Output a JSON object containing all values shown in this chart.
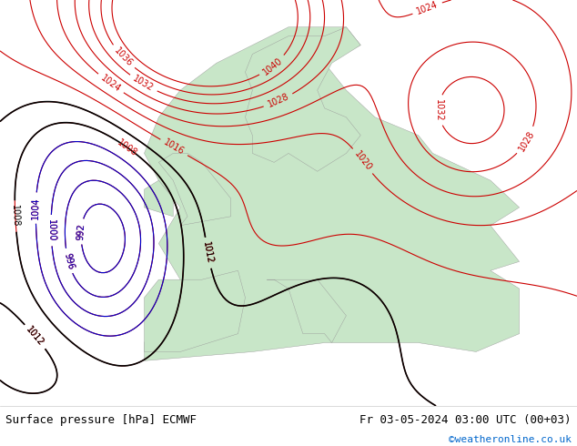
{
  "title_left": "Surface pressure [hPa] ECMWF",
  "title_right": "Fr 03-05-2024 03:00 UTC (00+03)",
  "credit": "©weatheronline.co.uk",
  "credit_color": "#0066cc",
  "bg_color": "#c8e6c8",
  "land_color": "#c8e6c8",
  "sea_color": "#a0c0e0",
  "border_bottom_color": "#e0e0e0",
  "label_fontsize": 9,
  "credit_fontsize": 8,
  "contour_red_color": "#cc0000",
  "contour_blue_color": "#0000cc",
  "contour_black_color": "#000000",
  "fig_width": 6.34,
  "fig_height": 4.9
}
